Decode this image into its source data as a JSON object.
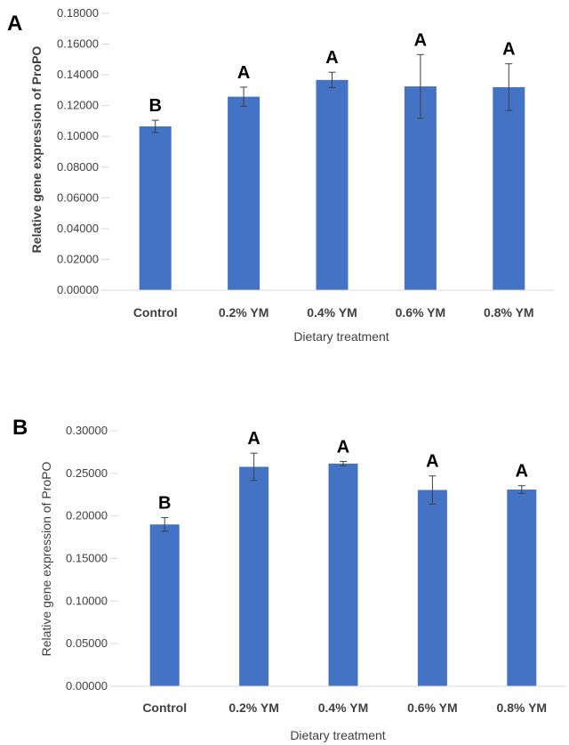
{
  "colors": {
    "bar": "#4472C4",
    "axis": "#D9D9D9",
    "text": "#404040",
    "error": "#404040"
  },
  "chart_data": [
    {
      "type": "bar",
      "panel": "A",
      "categories": [
        "Control",
        "0.2% YM",
        "0.4% YM",
        "0.6% YM",
        "0.8% YM"
      ],
      "values": [
        0.1065,
        0.1258,
        0.1367,
        0.1325,
        0.132
      ],
      "errors": [
        0.004,
        0.0062,
        0.005,
        0.0207,
        0.0152
      ],
      "significance": [
        "B",
        "A",
        "A",
        "A",
        "A"
      ],
      "yticks": [
        "0.00000",
        "0.02000",
        "0.04000",
        "0.06000",
        "0.08000",
        "0.10000",
        "0.12000",
        "0.14000",
        "0.16000",
        "0.18000"
      ],
      "ylim": [
        0,
        0.18
      ],
      "xlabel": "Dietary treatment",
      "ylabel": "Relative gene expression of ProPO",
      "grid": false
    },
    {
      "type": "bar",
      "panel": "B",
      "categories": [
        "Control",
        "0.2% YM",
        "0.4% YM",
        "0.6% YM",
        "0.8% YM"
      ],
      "values": [
        0.19,
        0.2577,
        0.2615,
        0.2305,
        0.231
      ],
      "errors": [
        0.008,
        0.016,
        0.0025,
        0.0165,
        0.0045
      ],
      "significance": [
        "B",
        "A",
        "A",
        "A",
        "A"
      ],
      "yticks": [
        "0.00000",
        "0.05000",
        "0.10000",
        "0.15000",
        "0.20000",
        "0.25000",
        "0.30000"
      ],
      "ylim": [
        0,
        0.3
      ],
      "xlabel": "Dietary treatment",
      "ylabel": "Relative gene expression of ProPO",
      "grid": false
    }
  ]
}
